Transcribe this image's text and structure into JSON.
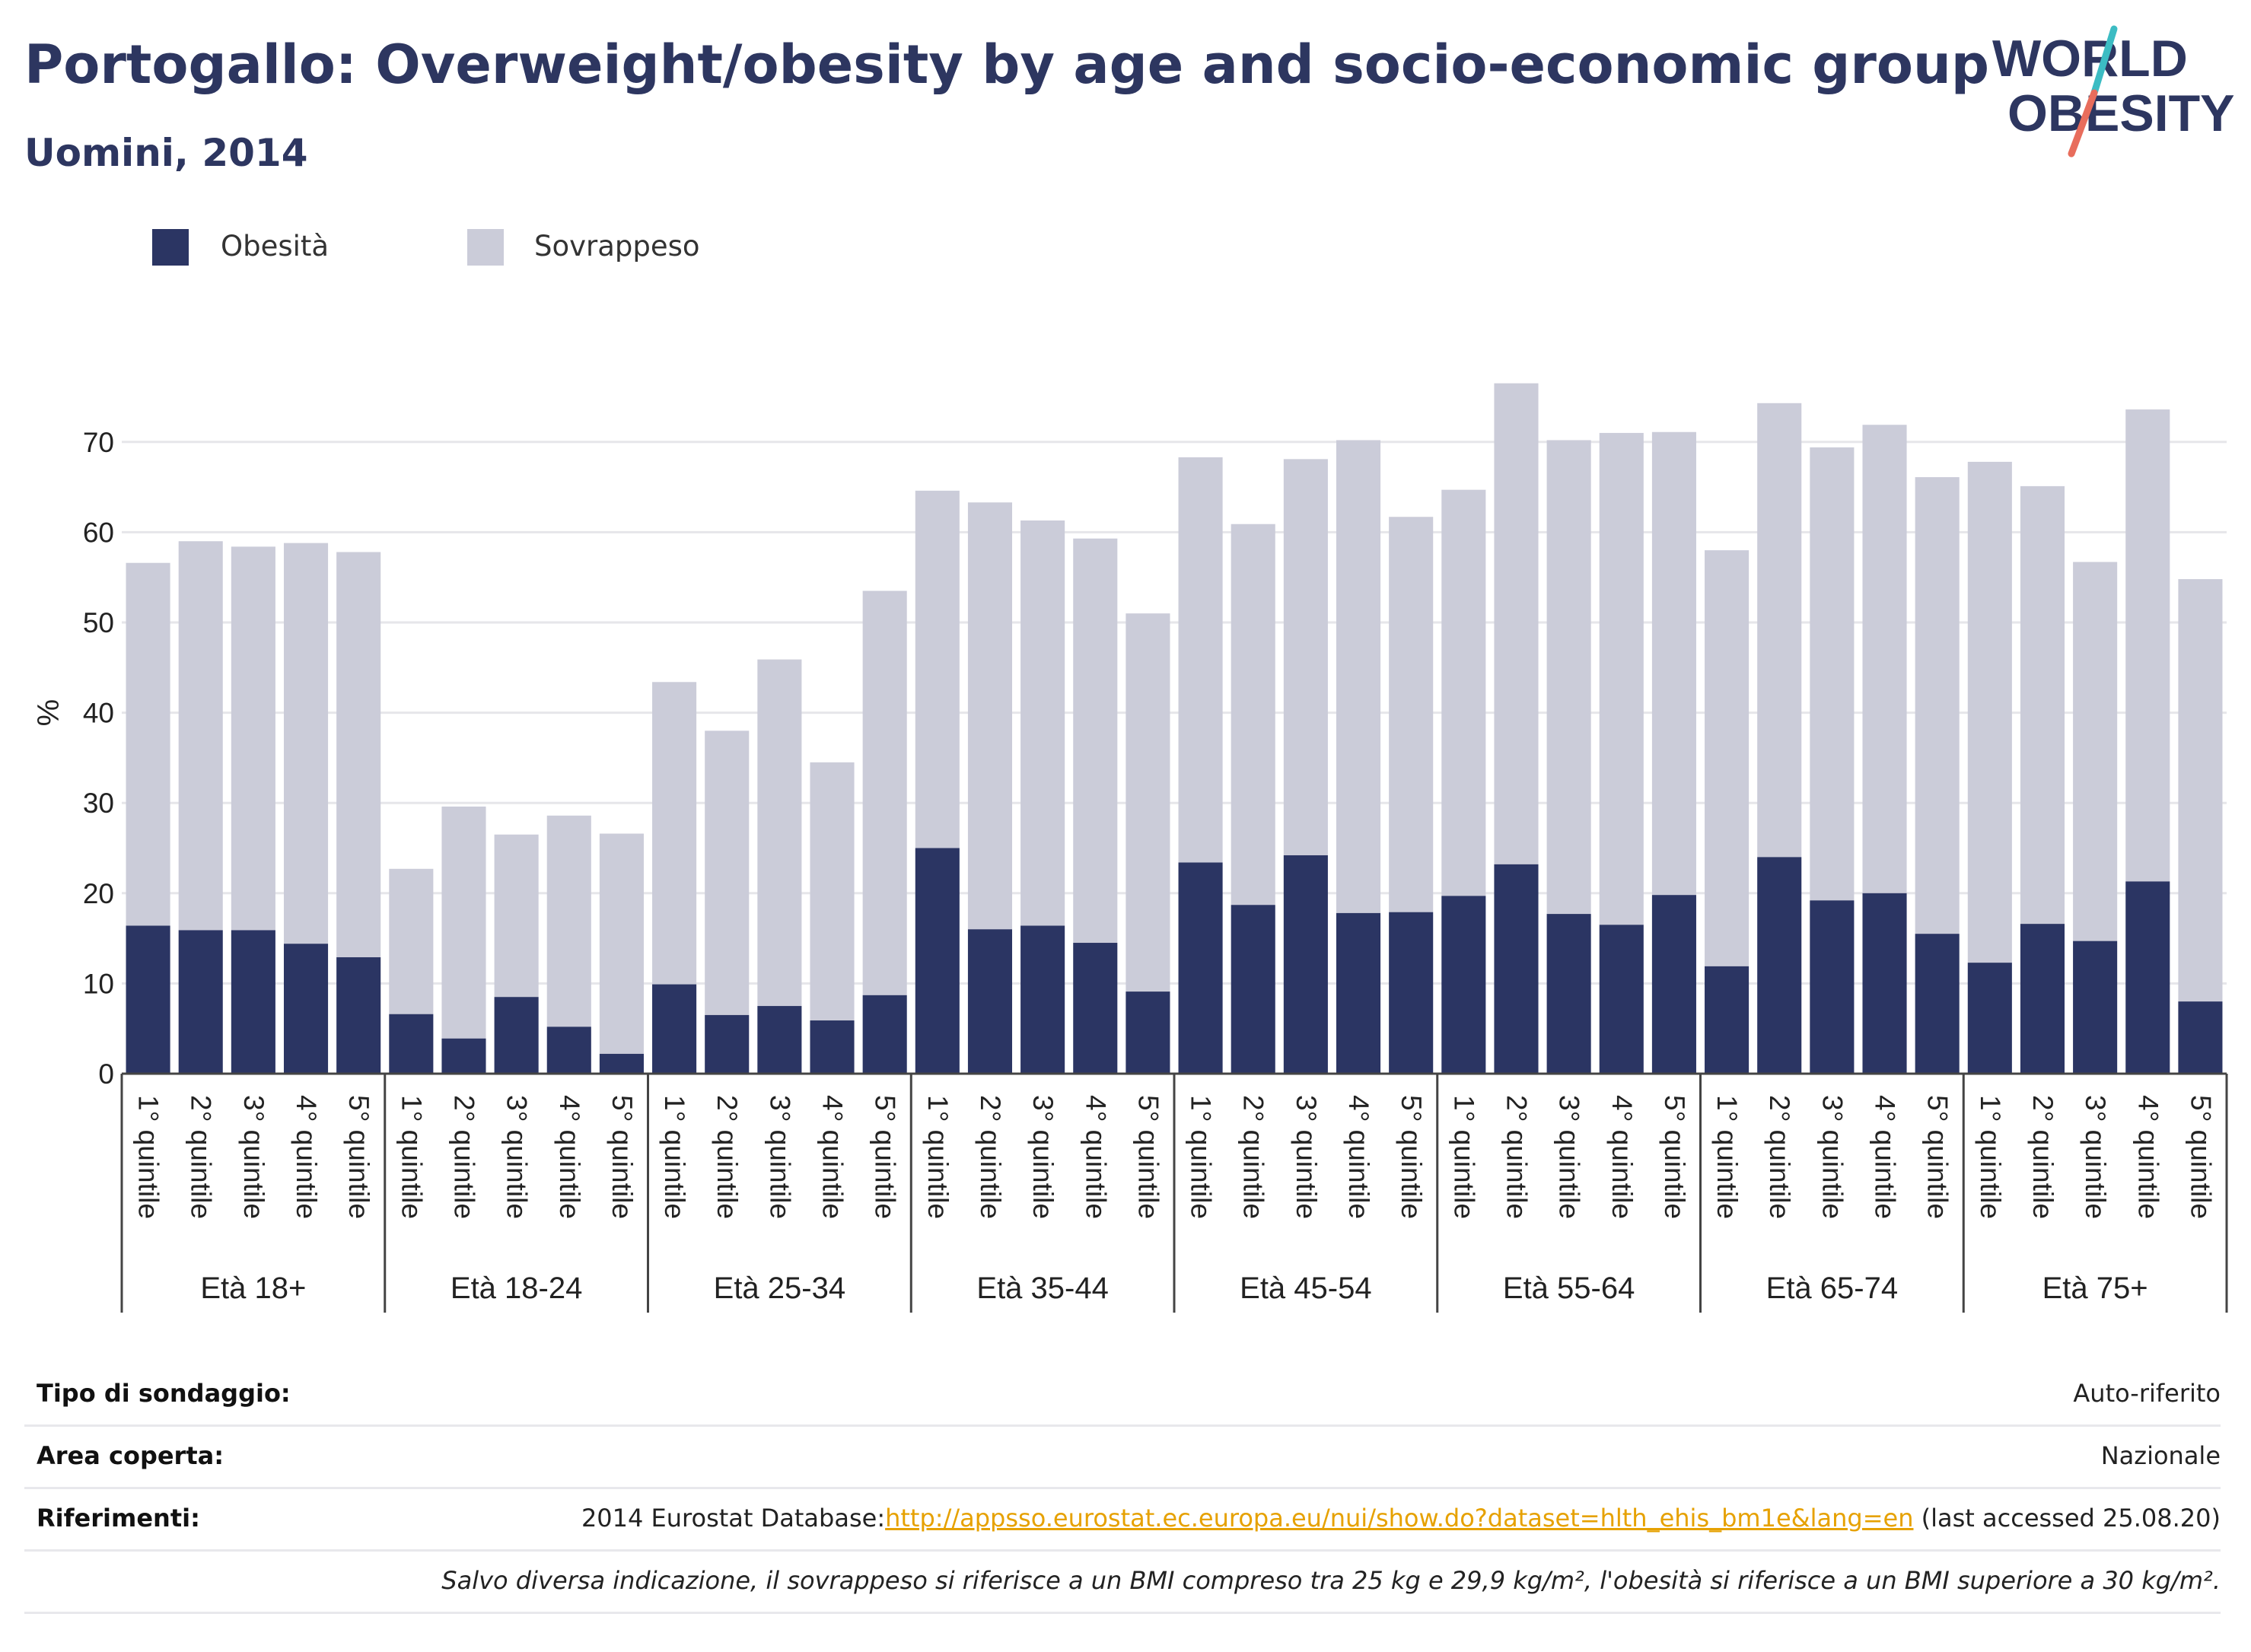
{
  "header": {
    "title": "Portogallo: Overweight/obesity by age and socio-economic group",
    "subtitle": "Uomini, 2014"
  },
  "logo": {
    "line1": "WORLD",
    "line2": "OBESITY"
  },
  "colors": {
    "obesity": "#2b3563",
    "overweight": "#cbccd9",
    "title": "#2d3660",
    "link": "#e6a100"
  },
  "chart_data": {
    "type": "bar",
    "stacked": true,
    "ylabel": "%",
    "xlabel": "",
    "ylim": [
      0,
      80
    ],
    "yticks": [
      0,
      10,
      20,
      30,
      40,
      50,
      60,
      70
    ],
    "grid": true,
    "legend_position": "top-left",
    "series": [
      {
        "name": "Obesità",
        "color": "#2b3563",
        "values": [
          16.4,
          15.9,
          15.9,
          14.4,
          12.9,
          6.6,
          3.9,
          8.5,
          5.2,
          2.2,
          9.9,
          6.5,
          7.5,
          5.9,
          8.7,
          25.0,
          16.0,
          16.4,
          14.5,
          9.1,
          23.4,
          18.7,
          24.2,
          17.8,
          17.9,
          19.7,
          23.2,
          17.7,
          16.5,
          19.8,
          11.9,
          24.0,
          19.2,
          20.0,
          15.5,
          12.3,
          16.6,
          14.7,
          21.3,
          8.0
        ]
      },
      {
        "name": "Sovrappeso",
        "color": "#cbccd9",
        "values": [
          40.2,
          43.1,
          42.5,
          44.4,
          44.9,
          16.1,
          25.7,
          18.0,
          23.4,
          24.4,
          33.5,
          31.5,
          38.4,
          28.6,
          44.8,
          39.6,
          47.3,
          44.9,
          44.8,
          41.9,
          44.9,
          42.2,
          43.9,
          52.4,
          43.8,
          45.0,
          53.3,
          52.5,
          54.5,
          51.3,
          46.1,
          50.3,
          50.2,
          51.9,
          50.6,
          55.5,
          48.5,
          42.0,
          52.3,
          46.8
        ]
      }
    ],
    "groups": [
      {
        "label": "Età 18+",
        "categories": [
          "1° quintile",
          "2° quintile",
          "3° quintile",
          "4° quintile",
          "5° quintile"
        ]
      },
      {
        "label": "Età 18-24",
        "categories": [
          "1° quintile",
          "2° quintile",
          "3° quintile",
          "4° quintile",
          "5° quintile"
        ]
      },
      {
        "label": "Età 25-34",
        "categories": [
          "1° quintile",
          "2° quintile",
          "3° quintile",
          "4° quintile",
          "5° quintile"
        ]
      },
      {
        "label": "Età 35-44",
        "categories": [
          "1° quintile",
          "2° quintile",
          "3° quintile",
          "4° quintile",
          "5° quintile"
        ]
      },
      {
        "label": "Età 45-54",
        "categories": [
          "1° quintile",
          "2° quintile",
          "3° quintile",
          "4° quintile",
          "5° quintile"
        ]
      },
      {
        "label": "Età 55-64",
        "categories": [
          "1° quintile",
          "2° quintile",
          "3° quintile",
          "4° quintile",
          "5° quintile"
        ]
      },
      {
        "label": "Età 65-74",
        "categories": [
          "1° quintile",
          "2° quintile",
          "3° quintile",
          "4° quintile",
          "5° quintile"
        ]
      },
      {
        "label": "Età 75+",
        "categories": [
          "1° quintile",
          "2° quintile",
          "3° quintile",
          "4° quintile",
          "5° quintile"
        ]
      }
    ]
  },
  "info": {
    "survey_type": {
      "label": "Tipo di sondaggio:",
      "value": "Auto-riferito"
    },
    "area": {
      "label": "Area coperta:",
      "value": "Nazionale"
    },
    "references": {
      "label": "Riferimenti:",
      "prefix": "2014 Eurostat Database:",
      "link": "http://appsso.eurostat.ec.europa.eu/nui/show.do?dataset=hlth_ehis_bm1e&lang=en",
      "suffix": " (last accessed 25.08.20)"
    },
    "note": "Salvo diversa indicazione, il sovrappeso si riferisce a un BMI compreso tra 25 kg e 29,9 kg/m², l'obesità si riferisce a un BMI superiore a 30 kg/m²."
  }
}
